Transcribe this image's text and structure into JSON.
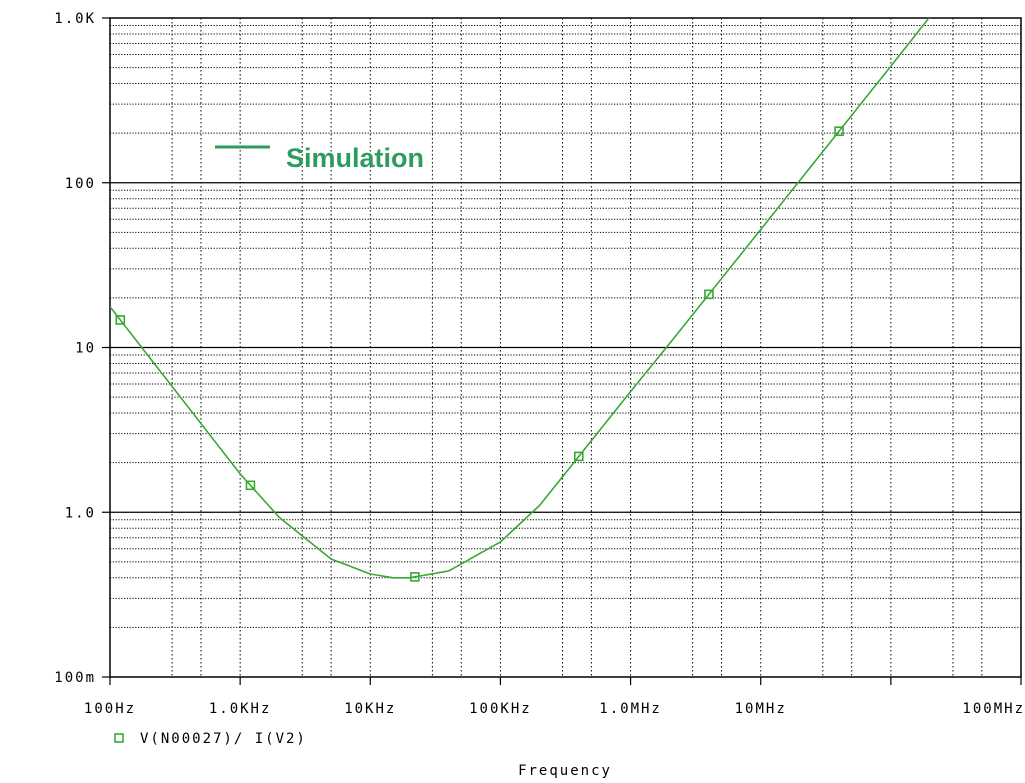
{
  "chart_data": {
    "type": "line",
    "x_scale": "log",
    "y_scale": "log",
    "xlim": [
      100,
      1000000000
    ],
    "ylim": [
      0.1,
      1000
    ],
    "grid": true,
    "legend_placement": "top-left",
    "xlabel": "Frequency",
    "x_tick_labels": [
      "100Hz",
      "1.0KHz",
      "10KHz",
      "100KHz",
      "1.0MHz",
      "10MHz",
      "100MHz"
    ],
    "y_tick_labels": [
      "100m",
      "1.0",
      "10",
      "100",
      "1.0K"
    ],
    "series": [
      {
        "name": "V(N00027)/ I(V2)",
        "color": "#3aa832",
        "marker": "square",
        "x": [
          100,
          120,
          1000,
          2000,
          5000,
          10000,
          15000,
          20000,
          40000,
          100000,
          200000,
          1000000,
          2000000,
          10000000,
          100000000,
          1000000000
        ],
        "y": [
          17.7,
          14.7,
          1.71,
          0.93,
          0.52,
          0.422,
          0.4,
          0.4,
          0.44,
          0.66,
          1.1,
          5.4,
          10.6,
          52,
          510,
          5100
        ],
        "marker_x": [
          120,
          1200,
          22000,
          400000,
          4000000,
          40000000
        ]
      }
    ],
    "annotations": [
      {
        "text": "Simulation",
        "color": "#2e9b5f"
      }
    ]
  }
}
